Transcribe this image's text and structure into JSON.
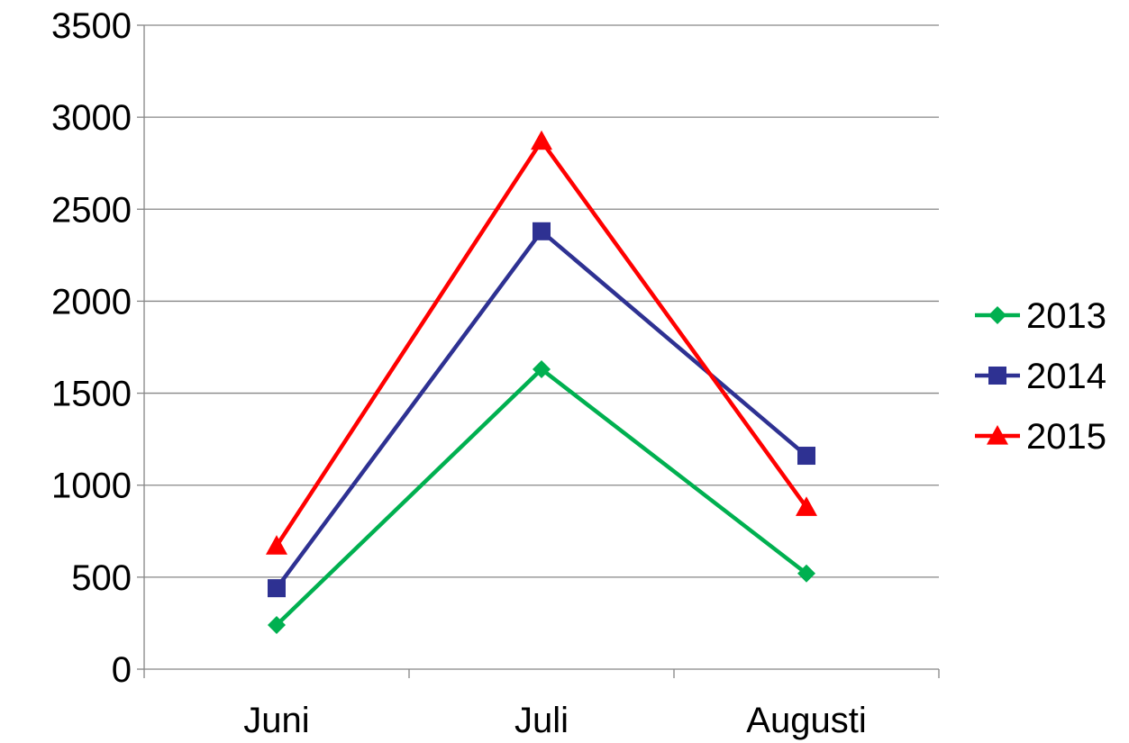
{
  "chart_data": {
    "type": "line",
    "title": "",
    "xlabel": "",
    "ylabel": "",
    "categories": [
      "Juni",
      "Juli",
      "Augusti"
    ],
    "ylim": [
      0,
      3500
    ],
    "yticks": [
      "0",
      "500",
      "1000",
      "1500",
      "2000",
      "2500",
      "3000",
      "3500"
    ],
    "grid": true,
    "legend_position": "right",
    "series": [
      {
        "name": "2013",
        "values": [
          240,
          1630,
          520
        ],
        "color": "#00b050",
        "marker": "diamond"
      },
      {
        "name": "2014",
        "values": [
          440,
          2380,
          1160
        ],
        "color": "#2e3192",
        "marker": "square"
      },
      {
        "name": "2015",
        "values": [
          670,
          2870,
          880
        ],
        "color": "#ff0000",
        "marker": "triangle"
      }
    ]
  }
}
